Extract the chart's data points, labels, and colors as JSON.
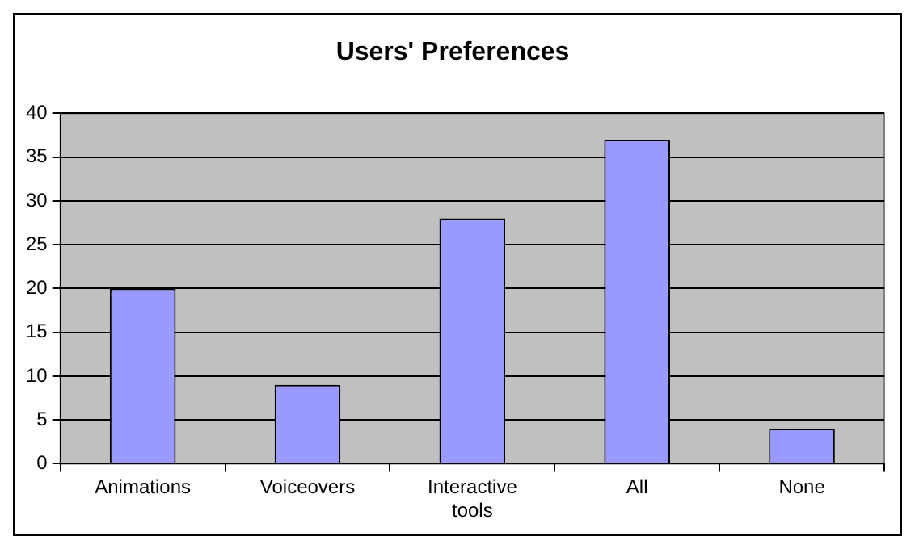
{
  "chart_data": {
    "type": "bar",
    "title": "Users' Preferences",
    "categories": [
      "Animations",
      "Voiceovers",
      "Interactive tools",
      "All",
      "None"
    ],
    "values": [
      20,
      9,
      28,
      37,
      4
    ],
    "color": "#9999ff",
    "ylim": [
      0,
      40
    ],
    "yticks": [
      0,
      5,
      10,
      15,
      20,
      25,
      30,
      35,
      40
    ],
    "grid": "y",
    "legend": false
  }
}
